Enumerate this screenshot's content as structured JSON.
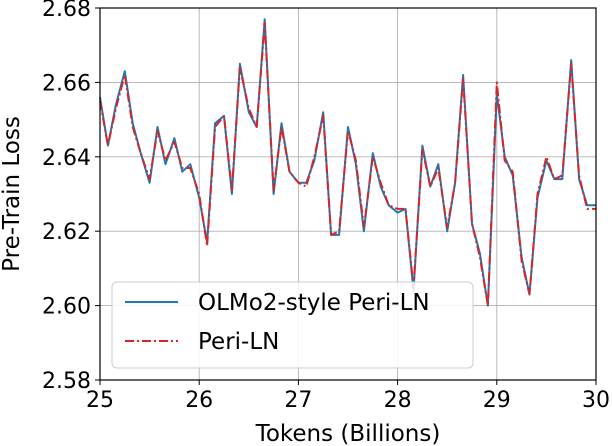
{
  "chart_data": {
    "type": "line",
    "title": "",
    "xlabel": "Tokens (Billions)",
    "ylabel": "Pre-Train Loss",
    "xlim": [
      25,
      30
    ],
    "ylim": [
      2.58,
      2.68
    ],
    "xticks": [
      "25",
      "26",
      "27",
      "28",
      "29",
      "30"
    ],
    "yticks": [
      "2.58",
      "2.60",
      "2.62",
      "2.64",
      "2.66",
      "2.68"
    ],
    "grid": true,
    "legend_position": "lower-left",
    "x": [
      25.0,
      25.08,
      25.16,
      25.25,
      25.33,
      25.41,
      25.5,
      25.58,
      25.66,
      25.75,
      25.83,
      25.91,
      26.0,
      26.08,
      26.16,
      26.25,
      26.33,
      26.41,
      26.5,
      26.58,
      26.66,
      26.75,
      26.83,
      26.91,
      27.0,
      27.08,
      27.16,
      27.25,
      27.33,
      27.41,
      27.5,
      27.58,
      27.66,
      27.75,
      27.83,
      27.91,
      28.0,
      28.08,
      28.16,
      28.25,
      28.33,
      28.41,
      28.5,
      28.58,
      28.66,
      28.75,
      28.83,
      28.91,
      29.0,
      29.08,
      29.16,
      29.25,
      29.33,
      29.41,
      29.5,
      29.58,
      29.66,
      29.75,
      29.83,
      29.91,
      30.0
    ],
    "series": [
      {
        "name": "OLMo2-style Peri-LN",
        "color": "#1f77b4",
        "linestyle": "solid",
        "values": [
          2.656,
          2.643,
          2.654,
          2.663,
          2.649,
          2.641,
          2.633,
          2.648,
          2.638,
          2.645,
          2.636,
          2.638,
          2.629,
          2.617,
          2.649,
          2.651,
          2.63,
          2.665,
          2.652,
          2.648,
          2.677,
          2.63,
          2.649,
          2.636,
          2.633,
          2.633,
          2.639,
          2.652,
          2.619,
          2.619,
          2.648,
          2.638,
          2.62,
          2.641,
          2.632,
          2.627,
          2.625,
          2.626,
          2.604,
          2.643,
          2.632,
          2.638,
          2.62,
          2.633,
          2.662,
          2.622,
          2.614,
          2.6,
          2.657,
          2.64,
          2.635,
          2.613,
          2.603,
          2.629,
          2.639,
          2.634,
          2.634,
          2.666,
          2.634,
          2.627,
          2.627
        ]
      },
      {
        "name": "Peri-LN",
        "color": "#d62728",
        "linestyle": "dashdot",
        "values": [
          2.655,
          2.643,
          2.653,
          2.662,
          2.648,
          2.641,
          2.634,
          2.647,
          2.639,
          2.644,
          2.637,
          2.637,
          2.63,
          2.616,
          2.648,
          2.651,
          2.631,
          2.664,
          2.653,
          2.648,
          2.676,
          2.631,
          2.648,
          2.636,
          2.633,
          2.632,
          2.64,
          2.651,
          2.619,
          2.62,
          2.647,
          2.639,
          2.621,
          2.64,
          2.633,
          2.627,
          2.626,
          2.626,
          2.605,
          2.642,
          2.632,
          2.637,
          2.621,
          2.633,
          2.661,
          2.622,
          2.613,
          2.6,
          2.66,
          2.639,
          2.636,
          2.612,
          2.603,
          2.63,
          2.64,
          2.634,
          2.635,
          2.665,
          2.635,
          2.626,
          2.626
        ]
      }
    ]
  }
}
